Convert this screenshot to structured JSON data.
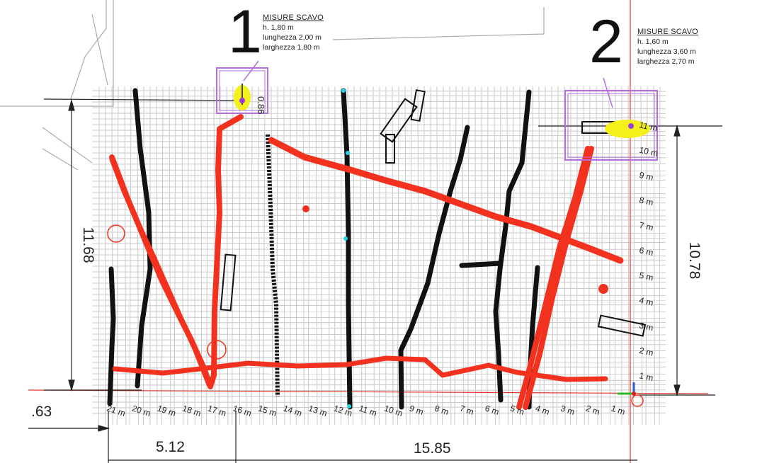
{
  "excavations": [
    {
      "number": "1",
      "title": "MISURE SCAVO",
      "lines": [
        "h. 1,80 m",
        "lunghezza 2,00 m",
        "larghezza 1,80 m"
      ]
    },
    {
      "number": "2",
      "title": "MISURE SCAVO",
      "lines": [
        "h. 1,60 m",
        "lunghezza 3,60 m",
        "larghezza 2,70 m"
      ]
    }
  ],
  "dimensions": {
    "left_height": "11.68",
    "right_height": "10.78",
    "bottom_left": "5.12",
    "bottom_right": "15.85",
    "far_left": ".63",
    "small_label": "0.86"
  },
  "x_ticks": [
    "21 m",
    "20 m",
    "19 m",
    "18 m",
    "17 m",
    "16 m",
    "15 m",
    "14 m",
    "13 m",
    "12 m",
    "11 m",
    "10 m",
    "9 m",
    "8 m",
    "7 m",
    "6 m",
    "5 m",
    "4 m",
    "3 m",
    "2 m",
    "1 m"
  ],
  "y_ticks": [
    "1 m",
    "2 m",
    "3 m",
    "4 m",
    "5 m",
    "6 m",
    "7 m",
    "8 m",
    "9 m",
    "10 m",
    "11 m"
  ],
  "colors": {
    "pipe_red": "#f2321e",
    "utility_black": "#111111",
    "box_purple": "#b46ee0",
    "highlight_yellow": "#f3f01a",
    "marker_cyan": "#22d3e6",
    "grid": "#c9c9c9"
  }
}
